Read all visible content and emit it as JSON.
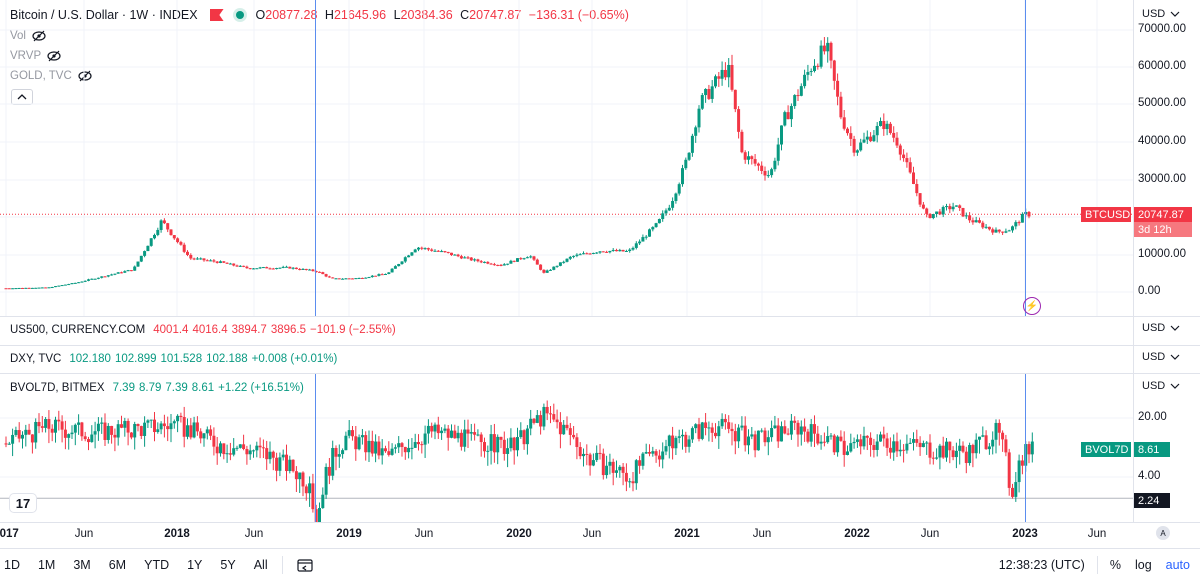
{
  "header": {
    "title": "Bitcoin / U.S. Dollar · 1W · INDEX",
    "ohlc": {
      "o_label": "O",
      "o": "20877.28",
      "h_label": "H",
      "h": "21645.96",
      "l_label": "L",
      "l": "20384.36",
      "c_label": "C",
      "c": "20747.87",
      "chg": "−136.31 (−0.65%)"
    }
  },
  "indicators": [
    {
      "label": "Vol"
    },
    {
      "label": "VRVP"
    },
    {
      "label": "GOLD, TVC"
    }
  ],
  "panes": {
    "us500": {
      "name": "US500, CURRENCY.COM",
      "values": [
        "4001.4",
        "4016.4",
        "3894.7",
        "3896.5",
        "−101.9 (−2.55%)"
      ]
    },
    "dxy": {
      "name": "DXY, TVC",
      "values": [
        "102.180",
        "102.899",
        "101.528",
        "102.188",
        "+0.008 (+0.01%)"
      ]
    },
    "bvol": {
      "name": "BVOL7D, BITMEX",
      "values": [
        "7.39",
        "8.79",
        "7.39",
        "8.61",
        "+1.22 (+16.51%)"
      ]
    }
  },
  "currency_label": "USD",
  "price_axis": [
    "70000.00",
    "60000.00",
    "50000.00",
    "40000.00",
    "30000.00",
    "20000.00",
    "10000.00",
    "0.00"
  ],
  "bvol_axis": [
    "20.00",
    "4.00"
  ],
  "price_tag": {
    "symbol": "BTCUSD",
    "price": "20747.87",
    "countdown": "3d 12h"
  },
  "bvol_tag": {
    "symbol": "BVOL7D",
    "value": "8.61",
    "low": "2.24"
  },
  "time_axis": [
    {
      "t": "2017",
      "year": true
    },
    {
      "t": "Jun",
      "year": false
    },
    {
      "t": "2018",
      "year": true
    },
    {
      "t": "Jun",
      "year": false
    },
    {
      "t": "2019",
      "year": true
    },
    {
      "t": "Jun",
      "year": false
    },
    {
      "t": "2020",
      "year": true
    },
    {
      "t": "Jun",
      "year": false
    },
    {
      "t": "2021",
      "year": true
    },
    {
      "t": "Jun",
      "year": false
    },
    {
      "t": "2022",
      "year": true
    },
    {
      "t": "Jun",
      "year": false
    },
    {
      "t": "2023",
      "year": true
    },
    {
      "t": "Jun",
      "year": false
    }
  ],
  "bottom_bar": {
    "ranges": [
      "1D",
      "1M",
      "3M",
      "6M",
      "YTD",
      "1Y",
      "5Y",
      "All"
    ],
    "time": "12:38:23 (UTC)",
    "percent": "%",
    "log": "log",
    "auto": "auto"
  },
  "colors": {
    "up": "#089981",
    "down": "#f23645",
    "accent": "#2962ff",
    "marker_line": "#5b8def"
  },
  "chart_data": [
    {
      "type": "candlestick",
      "title": "Bitcoin / U.S. Dollar · 1W · INDEX",
      "ylabel": "USD",
      "ylim": [
        -5000,
        72000
      ],
      "x_range": [
        "2017-01",
        "2023-07"
      ],
      "series": [
        {
          "name": "BTCUSD",
          "x": [
            "2017-01",
            "2017-04",
            "2017-06",
            "2017-08",
            "2017-10",
            "2017-12",
            "2018-02",
            "2018-04",
            "2018-06",
            "2018-09",
            "2018-11",
            "2018-12",
            "2019-02",
            "2019-04",
            "2019-06",
            "2019-08",
            "2019-10",
            "2019-12",
            "2020-02",
            "2020-03",
            "2020-05",
            "2020-07",
            "2020-09",
            "2020-11",
            "2020-12",
            "2021-01",
            "2021-02",
            "2021-04",
            "2021-05",
            "2021-07",
            "2021-08",
            "2021-10",
            "2021-11",
            "2021-12",
            "2022-01",
            "2022-03",
            "2022-04",
            "2022-05",
            "2022-06",
            "2022-08",
            "2022-09",
            "2022-11",
            "2022-12",
            "2023-01"
          ],
          "values": [
            1000,
            1200,
            2500,
            4300,
            6000,
            19000,
            9000,
            8000,
            6400,
            6500,
            5500,
            3500,
            3700,
            5000,
            12000,
            10500,
            8500,
            7200,
            9800,
            5000,
            9500,
            11000,
            10800,
            18000,
            24000,
            34000,
            50000,
            60000,
            37000,
            31000,
            46000,
            61000,
            65000,
            47000,
            38000,
            45000,
            40000,
            30000,
            20000,
            23000,
            19500,
            16000,
            16800,
            20747.87
          ]
        }
      ]
    },
    {
      "type": "candlestick",
      "title": "BVOL7D, BITMEX",
      "ylim": [
        0,
        28
      ],
      "series": [
        {
          "name": "BVOL7D",
          "x": [
            "2017-01",
            "2017-04",
            "2017-07",
            "2017-10",
            "2018-01",
            "2018-04",
            "2018-07",
            "2018-10",
            "2018-11",
            "2019-01",
            "2019-04",
            "2019-07",
            "2019-10",
            "2020-01",
            "2020-03",
            "2020-06",
            "2020-09",
            "2020-12",
            "2021-03",
            "2021-06",
            "2021-09",
            "2021-12",
            "2022-03",
            "2022-06",
            "2022-09",
            "2022-11",
            "2022-12",
            "2023-01"
          ],
          "values": [
            10,
            16,
            14,
            15,
            17,
            10,
            8,
            4,
            1,
            12,
            7,
            14,
            11,
            9,
            22,
            7,
            4,
            10,
            17,
            11,
            16,
            9,
            11,
            9,
            8,
            14,
            2.24,
            8.61
          ]
        }
      ]
    }
  ]
}
